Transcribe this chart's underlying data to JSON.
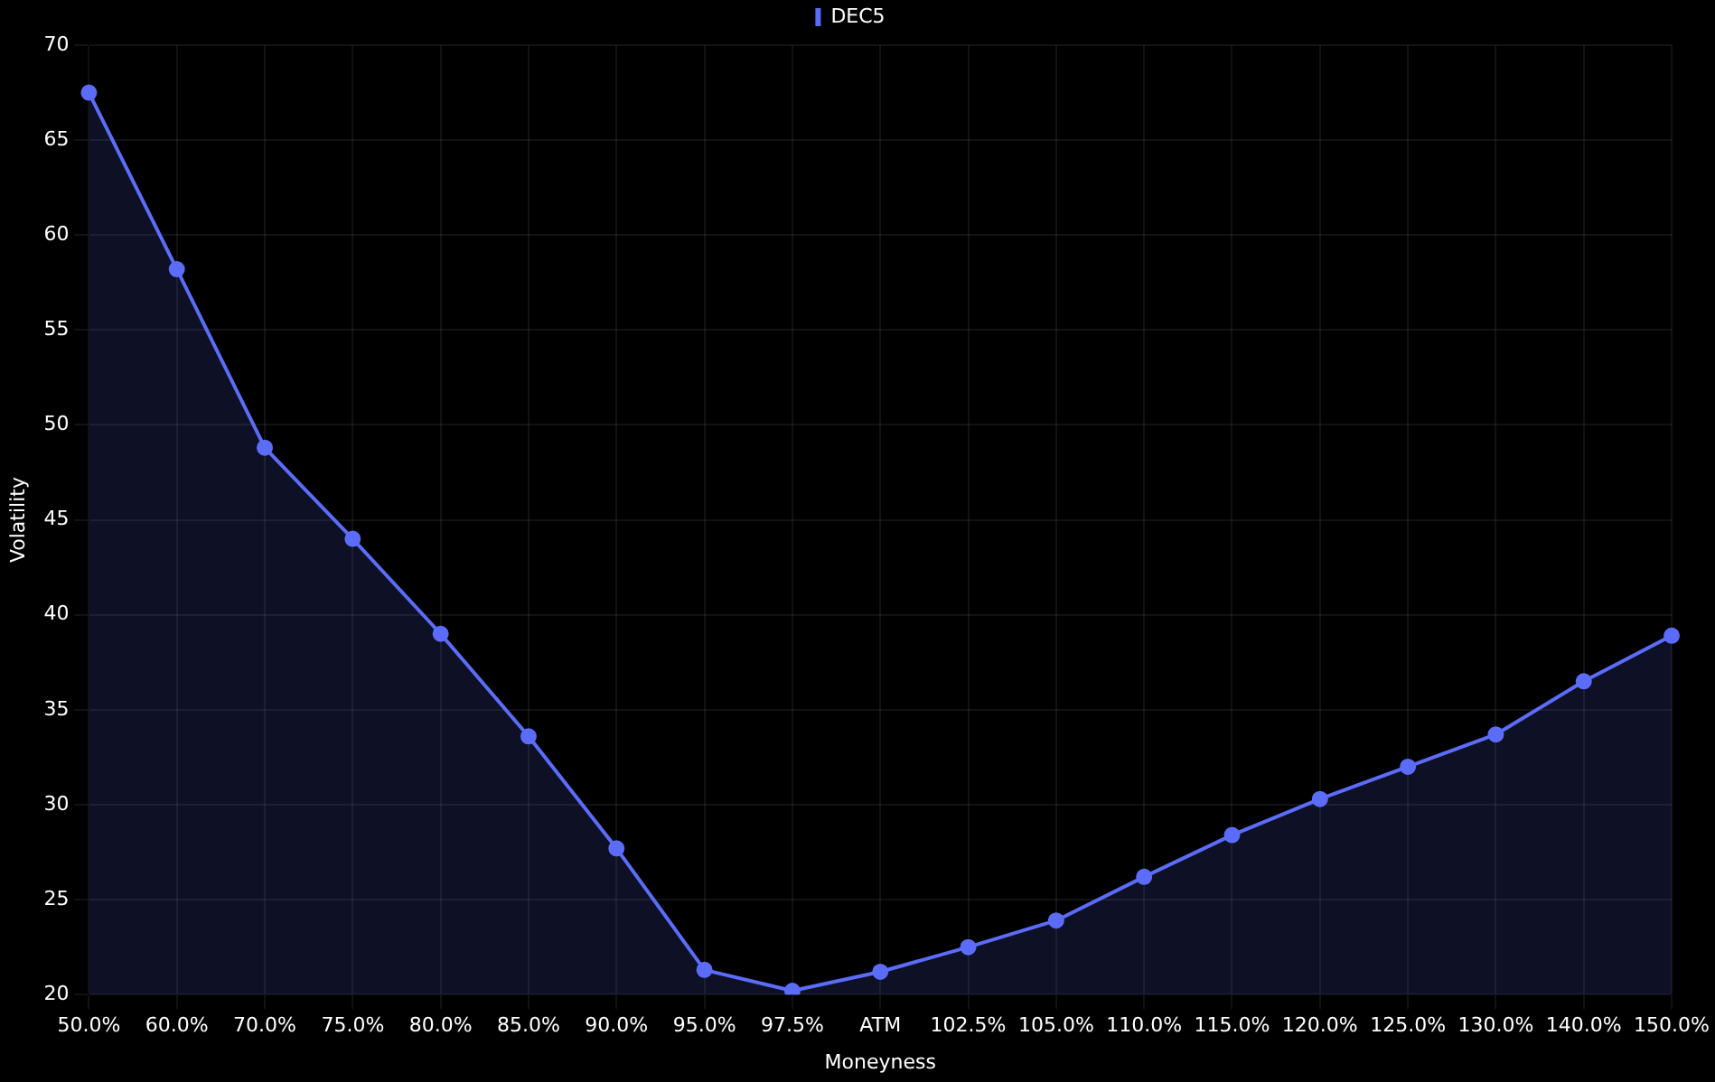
{
  "chart_data": {
    "type": "area",
    "xlabel": "Moneyness",
    "ylabel": "Volatility",
    "categories": [
      "50.0%",
      "60.0%",
      "70.0%",
      "75.0%",
      "80.0%",
      "85.0%",
      "90.0%",
      "95.0%",
      "97.5%",
      "ATM",
      "102.5%",
      "105.0%",
      "110.0%",
      "115.0%",
      "120.0%",
      "125.0%",
      "130.0%",
      "140.0%",
      "150.0%"
    ],
    "series": [
      {
        "name": "DEC5",
        "color": "#5b6cf9",
        "values": [
          67.5,
          58.2,
          48.8,
          44.0,
          39.0,
          33.6,
          27.7,
          21.3,
          20.2,
          21.2,
          22.5,
          23.9,
          26.2,
          28.4,
          30.3,
          32.0,
          33.7,
          36.5,
          38.9
        ]
      }
    ],
    "ylim": [
      20,
      70
    ],
    "yticks": [
      20,
      25,
      30,
      35,
      40,
      45,
      50,
      55,
      60,
      65,
      70
    ],
    "grid": true,
    "legend": "top",
    "marker": "circle"
  }
}
